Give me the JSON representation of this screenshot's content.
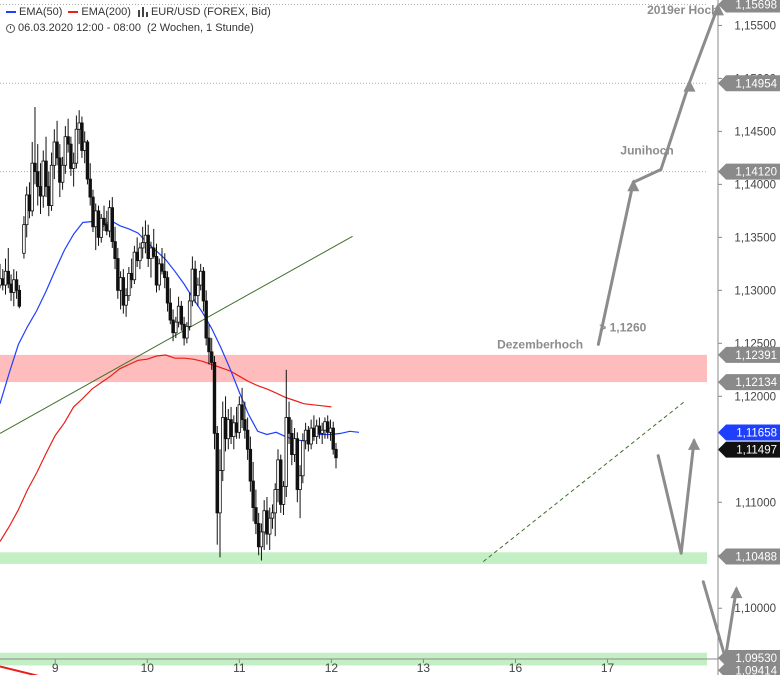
{
  "legend": {
    "ema50_label": "EMA(50)",
    "ema200_label": "EMA(200)",
    "symbol_label": "EUR/USD (FOREX, Bid)",
    "timestamp": "06.03.2020 12:00 - 08:00",
    "range": "(2 Wochen, 1 Stunde)",
    "ema50_color": "#1f3fff",
    "ema200_color": "#e8201a",
    "icon": "candlestick-icon",
    "time_icon": "clock-icon"
  },
  "chart_data": {
    "type": "candlestick",
    "title": "",
    "xlabel": "",
    "ylabel": "",
    "ylim": [
      1.0937,
      1.1574
    ],
    "x_ticks": [
      {
        "label": "9",
        "x": 12
      },
      {
        "label": "10",
        "x": 22
      },
      {
        "label": "11",
        "x": 32
      },
      {
        "label": "12",
        "x": 42
      },
      {
        "label": "13",
        "x": 52
      },
      {
        "label": "16",
        "x": 62
      },
      {
        "label": "17",
        "x": 72
      }
    ],
    "xlim": [
      6,
      84
    ],
    "y_ticks": [
      "1,15500",
      "1,15000",
      "1,14500",
      "1,14000",
      "1,13500",
      "1,13000",
      "1,12500",
      "1,12000",
      "1,11500",
      "1,11000",
      "1,10500",
      "1,10000"
    ],
    "y_tick_values": [
      1.155,
      1.15,
      1.145,
      1.14,
      1.135,
      1.13,
      1.125,
      1.12,
      1.115,
      1.11,
      1.105,
      1.1
    ],
    "price_markers": [
      {
        "label": "1,15698",
        "value": 1.15698,
        "style": "grey"
      },
      {
        "label": "1,14954",
        "value": 1.14954,
        "style": "grey"
      },
      {
        "label": "1,14120",
        "value": 1.1412,
        "style": "grey"
      },
      {
        "label": "1,12391",
        "value": 1.12391,
        "style": "grey"
      },
      {
        "label": "1,12134",
        "value": 1.12134,
        "style": "grey"
      },
      {
        "label": "1,11658",
        "value": 1.11658,
        "style": "blue"
      },
      {
        "label": "1,11497",
        "value": 1.11497,
        "style": "black"
      },
      {
        "label": "1,10488",
        "value": 1.10488,
        "style": "grey"
      },
      {
        "label": "1,09530",
        "value": 1.0953,
        "style": "grey"
      },
      {
        "label": "1,09414",
        "value": 1.09414,
        "style": "grey"
      }
    ],
    "resistance_lines": [
      1.15698,
      1.14954,
      1.1412
    ],
    "zones": [
      {
        "name": "resistance",
        "from": 1.12134,
        "to": 1.12391,
        "color": "#ffbcbc"
      },
      {
        "name": "support",
        "from": 1.10418,
        "to": 1.10528,
        "color": "#c4efc4"
      },
      {
        "name": "support",
        "from": 1.0946,
        "to": 1.0958,
        "color": "#c4efc4"
      }
    ],
    "annotations": [
      {
        "text": "2019er Hoch",
        "x": 76.3,
        "y": 1.1561
      },
      {
        "text": "Junihoch",
        "x": 73.4,
        "y": 1.1428
      },
      {
        "text": "> 1,1260",
        "x": 71.1,
        "y": 1.1261
      },
      {
        "text": "Dezemberhoch",
        "x": 60,
        "y": 1.1245
      }
    ],
    "trendlines": [
      {
        "name": "green-trendline",
        "color": "#3f6f2a",
        "dash": false,
        "points": [
          [
            6,
            1.1165
          ],
          [
            44.3,
            1.1351
          ]
        ]
      },
      {
        "name": "dashed-trendline",
        "color": "#3f6f2a",
        "dash": true,
        "points": [
          [
            58.5,
            1.1044
          ],
          [
            80.5,
            1.1196
          ]
        ]
      }
    ],
    "scenario_arrows": [
      {
        "from": [
          71,
          1.1249
        ],
        "to": [
          74.8,
          1.1402
        ]
      },
      {
        "from": [
          74.8,
          1.1402
        ],
        "to": [
          77.8,
          1.1414
        ]
      },
      {
        "from": [
          77.8,
          1.1414
        ],
        "to": [
          80.9,
          1.1496
        ]
      },
      {
        "from": [
          80.9,
          1.1496
        ],
        "to": [
          84,
          1.1568
        ]
      },
      {
        "from": [
          77.5,
          1.1144
        ],
        "to": [
          80,
          1.1052
        ]
      },
      {
        "from": [
          80,
          1.1052
        ],
        "to": [
          81.4,
          1.1158
        ]
      },
      {
        "from": [
          82.4,
          1.1025
        ],
        "to": [
          84.8,
          1.0953
        ]
      },
      {
        "from": [
          84.8,
          1.0953
        ],
        "to": [
          86,
          1.1018
        ]
      },
      {
        "from": [
          86,
          1.0935
        ],
        "to": [
          88.4,
          1.0955
        ]
      }
    ],
    "ema50": [
      [
        6,
        1.1193
      ],
      [
        7,
        1.1222
      ],
      [
        8,
        1.1249
      ],
      [
        9,
        1.1266
      ],
      [
        10,
        1.1281
      ],
      [
        11,
        1.1299
      ],
      [
        12,
        1.1319
      ],
      [
        13,
        1.1338
      ],
      [
        14,
        1.1353
      ],
      [
        15,
        1.1364
      ],
      [
        16,
        1.1365
      ],
      [
        17,
        1.1359
      ],
      [
        18,
        1.1366
      ],
      [
        19,
        1.1361
      ],
      [
        20,
        1.1358
      ],
      [
        21,
        1.1354
      ],
      [
        22,
        1.1345
      ],
      [
        23,
        1.1337
      ],
      [
        24,
        1.1329
      ],
      [
        25,
        1.1318
      ],
      [
        26,
        1.1306
      ],
      [
        27,
        1.1292
      ],
      [
        28,
        1.1279
      ],
      [
        29,
        1.1264
      ],
      [
        30,
        1.1246
      ],
      [
        31,
        1.1226
      ],
      [
        32,
        1.1204
      ],
      [
        33,
        1.1183
      ],
      [
        34,
        1.1167
      ],
      [
        35,
        1.1164
      ],
      [
        36,
        1.1166
      ],
      [
        37,
        1.1162
      ],
      [
        38,
        1.1159
      ],
      [
        39,
        1.1158
      ],
      [
        40,
        1.1164
      ],
      [
        41,
        1.1164
      ],
      [
        42,
        1.1164
      ],
      [
        43,
        1.1165
      ],
      [
        44,
        1.1167
      ],
      [
        45,
        1.1166
      ]
    ],
    "ema200": [
      [
        6,
        1.1063
      ],
      [
        7,
        1.1077
      ],
      [
        8,
        1.1093
      ],
      [
        9,
        1.1112
      ],
      [
        10,
        1.1128
      ],
      [
        11,
        1.1146
      ],
      [
        12,
        1.1163
      ],
      [
        13,
        1.1175
      ],
      [
        14,
        1.119
      ],
      [
        15,
        1.1198
      ],
      [
        16,
        1.1207
      ],
      [
        17,
        1.1213
      ],
      [
        18,
        1.1219
      ],
      [
        19,
        1.1226
      ],
      [
        20,
        1.123
      ],
      [
        21,
        1.1234
      ],
      [
        22,
        1.1235
      ],
      [
        23,
        1.1238
      ],
      [
        24,
        1.1239
      ],
      [
        25,
        1.1236
      ],
      [
        26,
        1.1236
      ],
      [
        27,
        1.1235
      ],
      [
        28,
        1.1233
      ],
      [
        29,
        1.123
      ],
      [
        30,
        1.1227
      ],
      [
        31,
        1.1224
      ],
      [
        32,
        1.1219
      ],
      [
        33,
        1.1214
      ],
      [
        34,
        1.121
      ],
      [
        35,
        1.1207
      ],
      [
        36,
        1.1203
      ],
      [
        37,
        1.1199
      ],
      [
        38,
        1.1196
      ],
      [
        39,
        1.1193
      ],
      [
        40,
        1.1192
      ],
      [
        41,
        1.1191
      ],
      [
        42,
        1.119
      ]
    ],
    "ema200_tail": [
      [
        6,
        1.0945
      ],
      [
        12.1,
        1.0932
      ]
    ],
    "candles": [
      [
        6,
        1.1305,
        1.1325,
        1.1302,
        1.1311
      ],
      [
        6.3,
        1.1311,
        1.132,
        1.13,
        1.1305
      ],
      [
        6.6,
        1.1305,
        1.133,
        1.1296,
        1.1318
      ],
      [
        6.9,
        1.1318,
        1.134,
        1.1302,
        1.1306
      ],
      [
        7.2,
        1.1306,
        1.1315,
        1.129,
        1.1298
      ],
      [
        7.5,
        1.1298,
        1.132,
        1.1285,
        1.131
      ],
      [
        7.8,
        1.131,
        1.1318,
        1.1292,
        1.13
      ],
      [
        8.1,
        1.13,
        1.1305,
        1.1283,
        1.1285
      ],
      [
        8.6,
        1.1335,
        1.137,
        1.133,
        1.1362
      ],
      [
        8.9,
        1.1362,
        1.1398,
        1.135,
        1.139
      ],
      [
        9.2,
        1.139,
        1.1402,
        1.1368,
        1.1375
      ],
      [
        9.5,
        1.1375,
        1.144,
        1.137,
        1.142
      ],
      [
        9.8,
        1.142,
        1.1473,
        1.14,
        1.1412
      ],
      [
        10.1,
        1.1412,
        1.1438,
        1.138,
        1.1398
      ],
      [
        10.4,
        1.1398,
        1.142,
        1.1372,
        1.1389
      ],
      [
        10.7,
        1.1389,
        1.1432,
        1.1378,
        1.1422
      ],
      [
        11.0,
        1.1422,
        1.1445,
        1.1388,
        1.1398
      ],
      [
        11.3,
        1.1398,
        1.1412,
        1.137,
        1.138
      ],
      [
        11.6,
        1.138,
        1.143,
        1.1375,
        1.1418
      ],
      [
        11.9,
        1.1418,
        1.1452,
        1.1405,
        1.144
      ],
      [
        12.2,
        1.144,
        1.146,
        1.1418,
        1.1425
      ],
      [
        12.5,
        1.1425,
        1.1438,
        1.1388,
        1.1402
      ],
      [
        12.8,
        1.1402,
        1.1426,
        1.1395,
        1.1418
      ],
      [
        13.1,
        1.1418,
        1.1455,
        1.141,
        1.1445
      ],
      [
        13.4,
        1.1445,
        1.1462,
        1.143,
        1.1438
      ],
      [
        13.7,
        1.1438,
        1.1445,
        1.1408,
        1.1415
      ],
      [
        14.0,
        1.1415,
        1.143,
        1.1398,
        1.142
      ],
      [
        14.3,
        1.142,
        1.1465,
        1.1415,
        1.1452
      ],
      [
        14.6,
        1.1452,
        1.147,
        1.1438,
        1.1458
      ],
      [
        14.9,
        1.1458,
        1.1464,
        1.1425,
        1.1432
      ],
      [
        15.2,
        1.1432,
        1.145,
        1.142,
        1.144
      ],
      [
        15.5,
        1.144,
        1.1442,
        1.14,
        1.1405
      ],
      [
        15.8,
        1.1405,
        1.142,
        1.138,
        1.1388
      ],
      [
        16.1,
        1.1388,
        1.1395,
        1.1355,
        1.136
      ],
      [
        16.4,
        1.136,
        1.1382,
        1.1338,
        1.1375
      ],
      [
        16.7,
        1.1375,
        1.138,
        1.1342,
        1.135
      ],
      [
        17.0,
        1.135,
        1.1372,
        1.1345,
        1.1368
      ],
      [
        17.3,
        1.1368,
        1.138,
        1.1356,
        1.1362
      ],
      [
        17.6,
        1.1362,
        1.1375,
        1.1352,
        1.1356
      ],
      [
        17.9,
        1.1356,
        1.1385,
        1.135,
        1.1378
      ],
      [
        18.2,
        1.1378,
        1.1388,
        1.134,
        1.1346
      ],
      [
        18.5,
        1.1346,
        1.136,
        1.132,
        1.133
      ],
      [
        18.8,
        1.133,
        1.134,
        1.1292,
        1.13
      ],
      [
        19.1,
        1.13,
        1.1318,
        1.1282,
        1.1312
      ],
      [
        19.4,
        1.1312,
        1.132,
        1.1278,
        1.1286
      ],
      [
        19.7,
        1.1286,
        1.1302,
        1.1275,
        1.1295
      ],
      [
        20.0,
        1.1295,
        1.1322,
        1.129,
        1.1316
      ],
      [
        20.3,
        1.1316,
        1.133,
        1.1302,
        1.131
      ],
      [
        20.6,
        1.131,
        1.1342,
        1.1306,
        1.1336
      ],
      [
        20.9,
        1.1336,
        1.135,
        1.1322,
        1.1328
      ],
      [
        21.2,
        1.1328,
        1.1345,
        1.132,
        1.134
      ],
      [
        21.5,
        1.134,
        1.136,
        1.133,
        1.1345
      ],
      [
        21.8,
        1.1345,
        1.1366,
        1.1335,
        1.1352
      ],
      [
        22.1,
        1.1352,
        1.1362,
        1.1322,
        1.133
      ],
      [
        22.4,
        1.133,
        1.1346,
        1.1312,
        1.134
      ],
      [
        22.7,
        1.134,
        1.1358,
        1.133,
        1.1332
      ],
      [
        23.0,
        1.1332,
        1.1344,
        1.1298,
        1.1305
      ],
      [
        23.3,
        1.1305,
        1.133,
        1.13,
        1.1325
      ],
      [
        23.6,
        1.1325,
        1.134,
        1.1315,
        1.1318
      ],
      [
        23.9,
        1.1318,
        1.1335,
        1.1302,
        1.1312
      ],
      [
        24.2,
        1.1312,
        1.1318,
        1.128,
        1.1288
      ],
      [
        24.5,
        1.1288,
        1.1302,
        1.1268,
        1.1272
      ],
      [
        24.8,
        1.1272,
        1.1282,
        1.1252,
        1.126
      ],
      [
        25.1,
        1.126,
        1.1275,
        1.1255,
        1.127
      ],
      [
        25.4,
        1.127,
        1.1294,
        1.1265,
        1.1285
      ],
      [
        25.7,
        1.1285,
        1.129,
        1.1262,
        1.1268
      ],
      [
        26.0,
        1.1268,
        1.1275,
        1.1248,
        1.1255
      ],
      [
        26.3,
        1.1255,
        1.127,
        1.125,
        1.1266
      ],
      [
        26.6,
        1.1266,
        1.1298,
        1.1262,
        1.129
      ],
      [
        26.9,
        1.129,
        1.1332,
        1.1285,
        1.132
      ],
      [
        27.2,
        1.132,
        1.1328,
        1.1288,
        1.1295
      ],
      [
        27.5,
        1.1295,
        1.1312,
        1.1285,
        1.1305
      ],
      [
        27.8,
        1.1305,
        1.1325,
        1.13,
        1.1318
      ],
      [
        28.1,
        1.1318,
        1.1322,
        1.128,
        1.129
      ],
      [
        28.4,
        1.129,
        1.13,
        1.1248,
        1.1255
      ],
      [
        28.7,
        1.1255,
        1.1268,
        1.123,
        1.1242
      ],
      [
        29.0,
        1.1242,
        1.1255,
        1.1225,
        1.1232
      ],
      [
        29.3,
        1.1232,
        1.1238,
        1.115,
        1.1165
      ],
      [
        29.6,
        1.1165,
        1.1172,
        1.106,
        1.109
      ],
      [
        29.9,
        1.109,
        1.115,
        1.1048,
        1.113
      ],
      [
        30.2,
        1.113,
        1.1195,
        1.112,
        1.118
      ],
      [
        30.5,
        1.118,
        1.12,
        1.1148,
        1.116
      ],
      [
        30.8,
        1.116,
        1.1188,
        1.115,
        1.1178
      ],
      [
        31.1,
        1.1178,
        1.119,
        1.1155,
        1.1162
      ],
      [
        31.4,
        1.1162,
        1.1182,
        1.115,
        1.1175
      ],
      [
        31.7,
        1.1175,
        1.119,
        1.116,
        1.1166
      ],
      [
        32.0,
        1.1166,
        1.12,
        1.116,
        1.1192
      ],
      [
        32.3,
        1.1192,
        1.1208,
        1.117,
        1.1178
      ],
      [
        32.6,
        1.1178,
        1.1195,
        1.116,
        1.1168
      ],
      [
        32.9,
        1.1168,
        1.118,
        1.114,
        1.115
      ],
      [
        33.2,
        1.115,
        1.1162,
        1.111,
        1.112
      ],
      [
        33.5,
        1.112,
        1.1138,
        1.1082,
        1.1095
      ],
      [
        33.8,
        1.1095,
        1.1112,
        1.107,
        1.108
      ],
      [
        34.1,
        1.108,
        1.109,
        1.105,
        1.1058
      ],
      [
        34.4,
        1.1058,
        1.108,
        1.1045,
        1.1072
      ],
      [
        34.7,
        1.1072,
        1.1102,
        1.1055,
        1.1092
      ],
      [
        35.0,
        1.1092,
        1.1105,
        1.106,
        1.107
      ],
      [
        35.3,
        1.107,
        1.1095,
        1.1055,
        1.1085
      ],
      [
        35.6,
        1.1085,
        1.1098,
        1.1075,
        1.109
      ],
      [
        35.9,
        1.109,
        1.1118,
        1.1068,
        1.1112
      ],
      [
        36.2,
        1.1112,
        1.115,
        1.11,
        1.114
      ],
      [
        36.5,
        1.114,
        1.1145,
        1.109,
        1.1098
      ],
      [
        36.8,
        1.1098,
        1.112,
        1.1088,
        1.1115
      ],
      [
        37.1,
        1.1115,
        1.1225,
        1.1105,
        1.118
      ],
      [
        37.4,
        1.118,
        1.1195,
        1.1155,
        1.1165
      ],
      [
        37.7,
        1.1165,
        1.1178,
        1.1135,
        1.1145
      ],
      [
        38.0,
        1.1145,
        1.117,
        1.1138,
        1.116
      ],
      [
        38.3,
        1.116,
        1.1166,
        1.11,
        1.1112
      ],
      [
        38.6,
        1.1112,
        1.1135,
        1.1085,
        1.1125
      ],
      [
        38.9,
        1.1125,
        1.1165,
        1.1118,
        1.1158
      ],
      [
        39.2,
        1.1158,
        1.1175,
        1.115,
        1.1168
      ],
      [
        39.5,
        1.1168,
        1.1172,
        1.1148,
        1.1155
      ],
      [
        39.8,
        1.1155,
        1.1178,
        1.115,
        1.117
      ],
      [
        40.1,
        1.117,
        1.1182,
        1.1158,
        1.1162
      ],
      [
        40.4,
        1.1162,
        1.1178,
        1.1155,
        1.1172
      ],
      [
        40.7,
        1.1172,
        1.118,
        1.116,
        1.1165
      ],
      [
        41.0,
        1.1165,
        1.1175,
        1.1155,
        1.1168
      ],
      [
        41.3,
        1.1168,
        1.118,
        1.116,
        1.1176
      ],
      [
        41.6,
        1.1176,
        1.1182,
        1.116,
        1.1166
      ],
      [
        41.9,
        1.1166,
        1.1178,
        1.1158,
        1.117
      ],
      [
        42.2,
        1.117,
        1.1176,
        1.1145,
        1.115
      ],
      [
        42.5,
        1.115,
        1.1156,
        1.1132,
        1.1142
      ]
    ]
  }
}
